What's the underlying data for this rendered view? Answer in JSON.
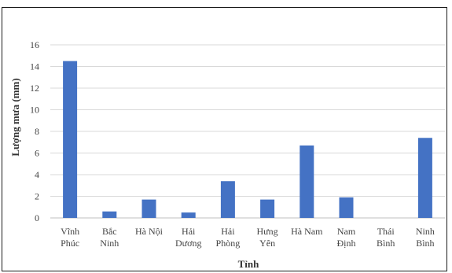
{
  "chart_data": {
    "type": "bar",
    "title": "",
    "xlabel": "Tỉnh",
    "ylabel": "Lượng mưa (mm)",
    "ylim": [
      0,
      16
    ],
    "yticks": [
      "0",
      "2",
      "4",
      "6",
      "8",
      "10",
      "12",
      "14",
      "16"
    ],
    "grid": true,
    "legend": "none",
    "bar_color": "#4472C4",
    "categories": [
      [
        "Vĩnh",
        "Phúc"
      ],
      [
        "Bắc",
        "Ninh"
      ],
      [
        "Hà Nội"
      ],
      [
        "Hải",
        "Dương"
      ],
      [
        "Hải",
        "Phòng"
      ],
      [
        "Hưng",
        "Yên"
      ],
      [
        "Hà Nam"
      ],
      [
        "Nam",
        "Định"
      ],
      [
        "Thái",
        "Bình"
      ],
      [
        "Ninh",
        "Bình"
      ]
    ],
    "values": [
      14.5,
      0.6,
      1.7,
      0.5,
      3.4,
      1.7,
      6.7,
      1.9,
      0,
      7.4
    ]
  }
}
